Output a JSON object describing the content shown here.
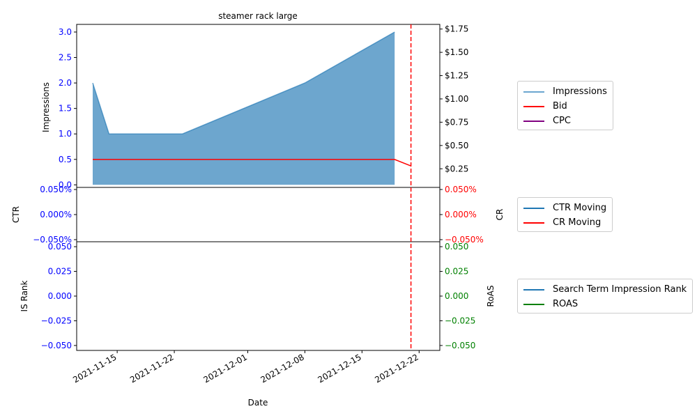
{
  "title": "steamer rack large",
  "xlabel": "Date",
  "x_ticks": [
    "2021-11-15",
    "2021-11-22",
    "2021-12-01",
    "2021-12-08",
    "2021-12-15",
    "2021-12-22"
  ],
  "colors": {
    "blue_area": "#1f77b4",
    "red": "#ff0000",
    "purple": "#800080",
    "green": "#008000",
    "tick_blue": "#0000ff"
  },
  "vline_date": "2021-12-21",
  "chart_data": [
    {
      "type": "area",
      "panel": "top",
      "ylabel": "Impressions",
      "ylim": [
        -0.05,
        3.15
      ],
      "yticks": [
        "0.0",
        "0.5",
        "1.0",
        "1.5",
        "2.0",
        "2.5",
        "3.0"
      ],
      "yticks_values": [
        0,
        0.5,
        1.0,
        1.5,
        2.0,
        2.5,
        3.0
      ],
      "right_ylim": [
        0.05,
        1.8
      ],
      "right_yticks": [
        "$0.25",
        "$0.50",
        "$0.75",
        "$1.00",
        "$1.25",
        "$1.50",
        "$1.75"
      ],
      "right_yticks_values": [
        0.25,
        0.5,
        0.75,
        1.0,
        1.25,
        1.5,
        1.75
      ],
      "series": [
        {
          "name": "Impressions",
          "x": [
            "2021-11-12",
            "2021-11-14",
            "2021-11-23",
            "2021-12-08",
            "2021-12-19"
          ],
          "values": [
            2,
            1,
            1,
            2,
            3
          ]
        },
        {
          "name": "Bid",
          "x": [
            "2021-11-12",
            "2021-12-19",
            "2021-12-21"
          ],
          "values": [
            0.35,
            0.35,
            0.28
          ]
        },
        {
          "name": "CPC",
          "x": [],
          "values": []
        }
      ]
    },
    {
      "type": "line",
      "panel": "middle",
      "ylabel": "CTR",
      "right_ylabel": "CR",
      "ylim": [
        -0.05,
        0.05
      ],
      "yticks": [
        "0.050%",
        "0.000%",
        "−0.050%"
      ],
      "yticks_values": [
        0.05,
        0,
        -0.05
      ],
      "right_yticks": [
        "0.050%",
        "0.000%",
        "−0.050%"
      ],
      "series": [
        {
          "name": "CTR Moving",
          "x": [],
          "values": []
        },
        {
          "name": "CR Moving",
          "x": [],
          "values": []
        }
      ]
    },
    {
      "type": "line",
      "panel": "bottom",
      "ylabel": "IS Rank",
      "right_ylabel": "RoAS",
      "ylim": [
        -0.055,
        0.055
      ],
      "yticks": [
        "0.050",
        "0.025",
        "0.000",
        "−0.025",
        "−0.050"
      ],
      "yticks_values": [
        0.05,
        0.025,
        0,
        -0.025,
        -0.05
      ],
      "right_yticks": [
        "0.050",
        "0.025",
        "0.000",
        "−0.025",
        "−0.050"
      ],
      "series": [
        {
          "name": "Search Term Impression Rank",
          "x": [],
          "values": []
        },
        {
          "name": "ROAS",
          "x": [],
          "values": []
        }
      ]
    }
  ],
  "legends": {
    "top": [
      {
        "label": "Impressions",
        "color": "#6ba6d0"
      },
      {
        "label": "Bid",
        "color": "#ff0000"
      },
      {
        "label": "CPC",
        "color": "#800080"
      }
    ],
    "middle": [
      {
        "label": "CTR Moving",
        "color": "#1f77b4"
      },
      {
        "label": "CR Moving",
        "color": "#ff0000"
      }
    ],
    "bottom": [
      {
        "label": "Search Term Impression Rank",
        "color": "#1f77b4"
      },
      {
        "label": "ROAS",
        "color": "#008000"
      }
    ]
  }
}
